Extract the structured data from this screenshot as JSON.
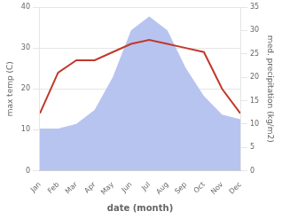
{
  "chart_data": {
    "type": "line",
    "xlabel": "date (month)",
    "ylabel": "max temp (C)",
    "y2label": "med. precipitation (kg/m2)",
    "categories": [
      "Jan",
      "Feb",
      "Mar",
      "Apr",
      "May",
      "Jun",
      "Jul",
      "Aug",
      "Sep",
      "Oct",
      "Nov",
      "Dec"
    ],
    "series": [
      {
        "type": "area",
        "axis": "y2",
        "color": "#b8c4f0",
        "values": [
          9,
          9,
          10,
          13,
          20,
          30,
          33,
          30,
          22,
          16,
          12,
          11
        ]
      },
      {
        "type": "line",
        "color": "#c0392b",
        "values": [
          14,
          24,
          27,
          27,
          29,
          31,
          32,
          31,
          30,
          29,
          20,
          14
        ]
      }
    ],
    "ylim": [
      0,
      40
    ],
    "yticks": [
      0,
      10,
      20,
      30,
      40
    ],
    "y2lim": [
      0,
      35
    ],
    "y2ticks": [
      0,
      5,
      10,
      15,
      20,
      25,
      30,
      35
    ],
    "grid": true
  }
}
